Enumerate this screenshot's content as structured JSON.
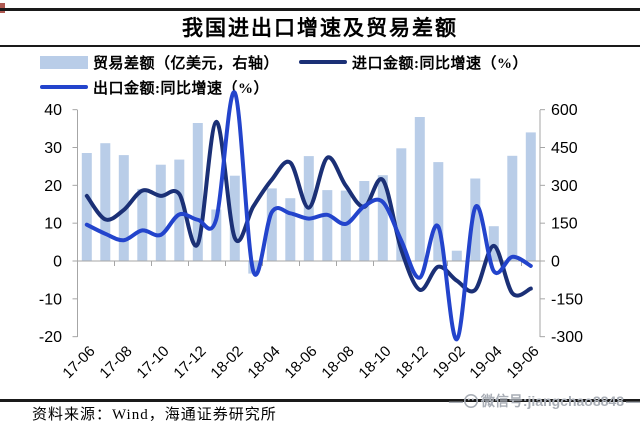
{
  "page": {
    "title": "我国进出口增速及贸易差额",
    "source_label": "资料来源：Wind，海通证券研究所",
    "watermark_text": "微信号:jiangchao8848",
    "watermark_dash": "—"
  },
  "legend": {
    "trade_balance": "贸易差额（亿美元，右轴）",
    "import_line": "进口金额:同比增速（%）",
    "export_line": "出口金额:同比增速（%）"
  },
  "colors": {
    "bar_fill": "#b9cde8",
    "import_line": "#1b3076",
    "export_line": "#2344cc",
    "axis_gray": "#a6a6a6",
    "rule_black": "#1a1a1a",
    "watermark_gray": "#a9aeb6"
  },
  "chart_data": {
    "type": "bar+line",
    "title": "我国进出口增速及贸易差额",
    "categories": [
      "17-06",
      "17-07",
      "17-08",
      "17-09",
      "17-10",
      "17-11",
      "17-12",
      "18-01",
      "18-02",
      "18-03",
      "18-04",
      "18-05",
      "18-06",
      "18-07",
      "18-08",
      "18-09",
      "18-10",
      "18-11",
      "18-12",
      "19-01",
      "19-02",
      "19-03",
      "19-04",
      "19-05",
      "19-06"
    ],
    "x_tick_labels": [
      "17-06",
      "17-08",
      "17-10",
      "17-12",
      "18-02",
      "18-04",
      "18-06",
      "18-08",
      "18-10",
      "18-12",
      "19-02",
      "19-04",
      "19-06"
    ],
    "x_tick_every": 2,
    "series": [
      {
        "name": "贸易差额（亿美元，右轴）",
        "type": "bar",
        "axis": "right",
        "color": "#b9cde8",
        "values": [
          428,
          467,
          420,
          286,
          382,
          402,
          547,
          204,
          338,
          -50,
          288,
          249,
          416,
          281,
          279,
          317,
          340,
          447,
          571,
          392,
          41,
          327,
          138,
          417,
          510
        ]
      },
      {
        "name": "进口金额:同比增速（%）",
        "type": "line",
        "axis": "left",
        "color": "#1b3076",
        "values": [
          17.2,
          11.0,
          13.5,
          18.6,
          17.2,
          17.7,
          4.5,
          36.8,
          6.1,
          14.4,
          21.5,
          26.0,
          14.1,
          27.3,
          19.9,
          14.3,
          21.4,
          3.0,
          -7.6,
          -1.5,
          -5.2,
          -7.6,
          4.0,
          -8.5,
          -7.3
        ]
      },
      {
        "name": "出口金额:同比增速（%）",
        "type": "line",
        "axis": "left",
        "color": "#2344cc",
        "values": [
          9.6,
          7.2,
          5.5,
          8.1,
          6.9,
          12.3,
          10.9,
          11.1,
          44.5,
          -2.7,
          12.9,
          12.6,
          11.2,
          12.2,
          9.8,
          14.5,
          15.6,
          5.4,
          -4.4,
          9.1,
          -20.7,
          14.2,
          -2.7,
          1.1,
          -1.3
        ]
      }
    ],
    "left_axis": {
      "label": "同比增速（%）",
      "min": -20,
      "max": 40,
      "ticks": [
        40,
        30,
        20,
        10,
        0,
        -10,
        -20
      ]
    },
    "right_axis": {
      "label": "贸易差额（亿美元）",
      "min": -300,
      "max": 600,
      "ticks": [
        600,
        450,
        300,
        150,
        0,
        -150,
        -300
      ]
    },
    "grid": false,
    "legend_position": "top-left",
    "line_smoothing": true
  }
}
